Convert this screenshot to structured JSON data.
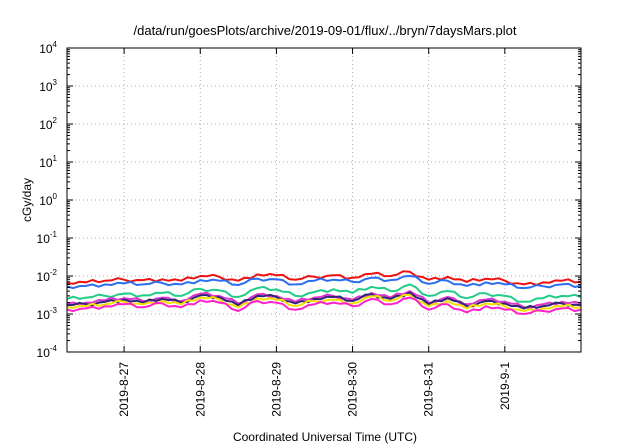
{
  "chart_data": {
    "type": "line",
    "title": "/data/run/goesPlots/archive/2019-09-01/flux/../bryn/7daysMars.plot",
    "xlabel": "Coordinated Universal Time (UTC)",
    "ylabel": "cGy/day",
    "yscale": "log",
    "ylim": [
      0.0001,
      10000
    ],
    "y_ticks": [
      {
        "base": "10",
        "exp": "-4",
        "value": 0.0001
      },
      {
        "base": "10",
        "exp": "-3",
        "value": 0.001
      },
      {
        "base": "10",
        "exp": "-2",
        "value": 0.01
      },
      {
        "base": "10",
        "exp": "-1",
        "value": 0.1
      },
      {
        "base": "10",
        "exp": "0",
        "value": 1
      },
      {
        "base": "10",
        "exp": "1",
        "value": 10
      },
      {
        "base": "10",
        "exp": "2",
        "value": 100
      },
      {
        "base": "10",
        "exp": "3",
        "value": 1000
      },
      {
        "base": "10",
        "exp": "4",
        "value": 10000
      }
    ],
    "x_range_days": [
      "2019-08-26T06:00",
      "2019-09-02T00:00"
    ],
    "x_ticks": [
      {
        "label": "2019-8-27",
        "time": "2019-08-27T00:00"
      },
      {
        "label": "2019-8-28",
        "time": "2019-08-28T00:00"
      },
      {
        "label": "2019-8-29",
        "time": "2019-08-29T00:00"
      },
      {
        "label": "2019-8-30",
        "time": "2019-08-30T00:00"
      },
      {
        "label": "2019-8-31",
        "time": "2019-08-31T00:00"
      },
      {
        "label": "2019-9-1",
        "time": "2019-09-01T00:00"
      }
    ],
    "grid": true,
    "x": [
      "2019-08-26T06:00",
      "2019-08-26T12:00",
      "2019-08-26T18:00",
      "2019-08-27T00:00",
      "2019-08-27T06:00",
      "2019-08-27T12:00",
      "2019-08-27T18:00",
      "2019-08-28T00:00",
      "2019-08-28T06:00",
      "2019-08-28T12:00",
      "2019-08-28T18:00",
      "2019-08-29T00:00",
      "2019-08-29T06:00",
      "2019-08-29T12:00",
      "2019-08-29T18:00",
      "2019-08-30T00:00",
      "2019-08-30T06:00",
      "2019-08-30T12:00",
      "2019-08-30T18:00",
      "2019-08-31T00:00",
      "2019-08-31T06:00",
      "2019-08-31T12:00",
      "2019-08-31T18:00",
      "2019-09-01T00:00",
      "2019-09-01T06:00",
      "2019-09-01T12:00",
      "2019-09-01T18:00",
      "2019-09-02T00:00"
    ],
    "series": [
      {
        "color": "#ee1111",
        "values": [
          0.0065,
          0.0068,
          0.0075,
          0.008,
          0.0078,
          0.0082,
          0.0075,
          0.01,
          0.0095,
          0.0075,
          0.011,
          0.0105,
          0.008,
          0.0095,
          0.0105,
          0.009,
          0.0115,
          0.01,
          0.013,
          0.008,
          0.0095,
          0.007,
          0.0085,
          0.0075,
          0.006,
          0.0068,
          0.0075,
          0.007
        ]
      },
      {
        "color": "#2a6ff0",
        "values": [
          0.0053,
          0.0055,
          0.006,
          0.0064,
          0.006,
          0.0066,
          0.006,
          0.0078,
          0.0075,
          0.0058,
          0.0085,
          0.0082,
          0.006,
          0.0075,
          0.008,
          0.007,
          0.009,
          0.0078,
          0.01,
          0.0062,
          0.0075,
          0.0055,
          0.0068,
          0.006,
          0.0048,
          0.0054,
          0.006,
          0.0056
        ]
      },
      {
        "color": "#22cc88",
        "values": [
          0.0025,
          0.0027,
          0.003,
          0.0034,
          0.0031,
          0.0036,
          0.003,
          0.0046,
          0.0042,
          0.0028,
          0.0048,
          0.0044,
          0.003,
          0.0038,
          0.0045,
          0.0036,
          0.0052,
          0.004,
          0.006,
          0.003,
          0.004,
          0.0026,
          0.0035,
          0.003,
          0.0021,
          0.0026,
          0.003,
          0.0028
        ]
      },
      {
        "color": "#dd33cc",
        "values": [
          0.00185,
          0.002,
          0.0023,
          0.0026,
          0.0022,
          0.0027,
          0.0022,
          0.0034,
          0.003,
          0.0019,
          0.0033,
          0.003,
          0.0021,
          0.0027,
          0.003,
          0.0024,
          0.0036,
          0.0027,
          0.004,
          0.002,
          0.0028,
          0.0018,
          0.0024,
          0.0021,
          0.0015,
          0.0018,
          0.0021,
          0.0019
        ]
      },
      {
        "color": "#33227a",
        "values": [
          0.0017,
          0.0018,
          0.0021,
          0.0024,
          0.002,
          0.0025,
          0.002,
          0.0031,
          0.0028,
          0.0017,
          0.003,
          0.0028,
          0.0019,
          0.0025,
          0.0028,
          0.0022,
          0.0033,
          0.0025,
          0.0037,
          0.0018,
          0.0026,
          0.0016,
          0.0022,
          0.0019,
          0.0014,
          0.0016,
          0.0019,
          0.0017
        ]
      },
      {
        "color": "#f2e000",
        "values": [
          0.0015,
          0.0016,
          0.0018,
          0.0021,
          0.0018,
          0.0022,
          0.0018,
          0.0027,
          0.0024,
          0.0015,
          0.0026,
          0.0024,
          0.0016,
          0.0022,
          0.0024,
          0.0019,
          0.0029,
          0.0022,
          0.0032,
          0.0016,
          0.0022,
          0.0014,
          0.0019,
          0.0016,
          0.0012,
          0.0014,
          0.0016,
          0.0015
        ]
      },
      {
        "color": "#ff22cc",
        "values": [
          0.0013,
          0.0014,
          0.0016,
          0.0018,
          0.0015,
          0.0019,
          0.0015,
          0.0023,
          0.002,
          0.0012,
          0.0022,
          0.002,
          0.0013,
          0.0018,
          0.002,
          0.0016,
          0.0025,
          0.0018,
          0.0027,
          0.0013,
          0.0018,
          0.0011,
          0.0016,
          0.0013,
          0.001,
          0.0012,
          0.0014,
          0.0013
        ]
      }
    ]
  }
}
